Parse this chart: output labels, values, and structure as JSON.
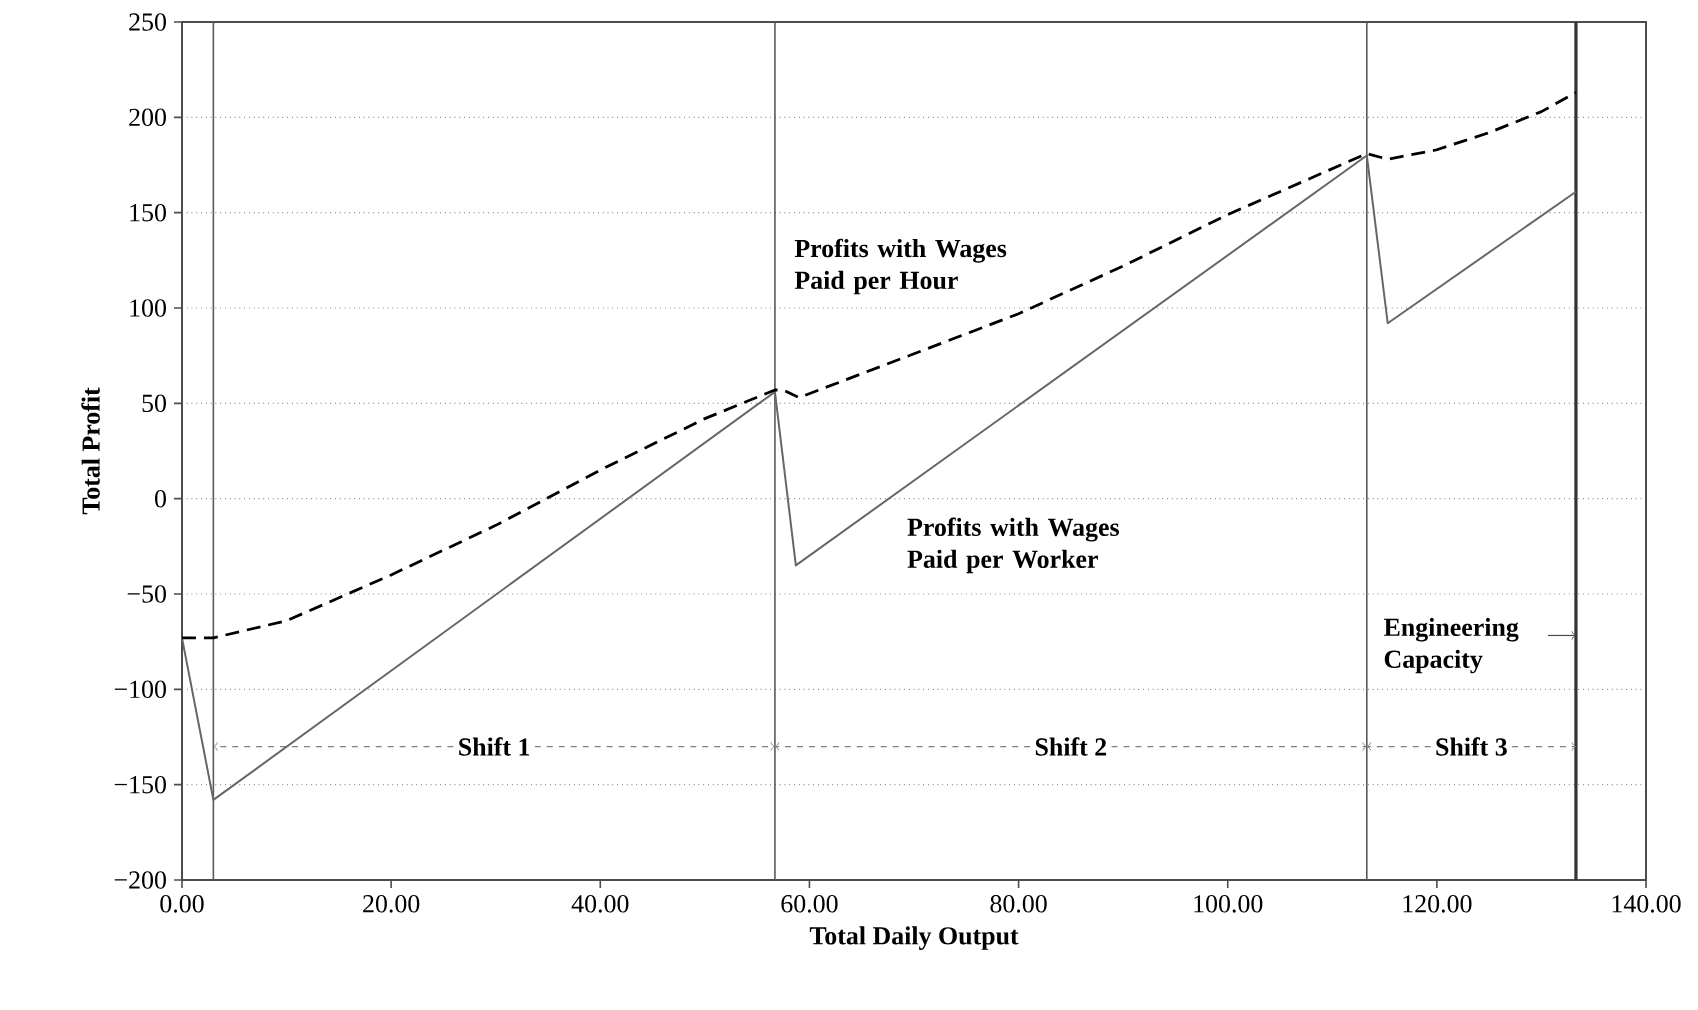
{
  "chart_data": {
    "type": "line",
    "xlabel": "Total Daily Output",
    "ylabel": "Total Profit",
    "xlim": [
      0,
      140
    ],
    "ylim": [
      -200,
      250
    ],
    "xticks": [
      {
        "value": 0,
        "label": "0.00"
      },
      {
        "value": 20,
        "label": "20.00"
      },
      {
        "value": 40,
        "label": "40.00"
      },
      {
        "value": 60,
        "label": "60.00"
      },
      {
        "value": 80,
        "label": "80.00"
      },
      {
        "value": 100,
        "label": "100.00"
      },
      {
        "value": 120,
        "label": "120.00"
      },
      {
        "value": 140,
        "label": "140.00"
      }
    ],
    "yticks": [
      {
        "value": -200,
        "label": "−200"
      },
      {
        "value": -150,
        "label": "−150"
      },
      {
        "value": -100,
        "label": "−100"
      },
      {
        "value": -50,
        "label": "−50"
      },
      0,
      50,
      100,
      150,
      200,
      250
    ],
    "grid": "y",
    "marker": "none",
    "series": [
      {
        "color": "#666666",
        "line_style": "solid",
        "x": [
          0,
          3,
          56.7,
          58.7,
          113.3,
          115.3,
          133.3
        ],
        "values": [
          -73,
          -158,
          56,
          -35,
          180,
          92,
          161
        ]
      },
      {
        "color": "#000000",
        "line_style": "dashed",
        "x": [
          0,
          3,
          10,
          20,
          30,
          40,
          50,
          56.7,
          57.5,
          59,
          70,
          80,
          90,
          100,
          113.3,
          115.3,
          120,
          125,
          130,
          133.3
        ],
        "values": [
          -73,
          -73,
          -64,
          -40,
          -14,
          15,
          42,
          57,
          57,
          53,
          76,
          97,
          122,
          149,
          181,
          178,
          183,
          192,
          203,
          213
        ]
      }
    ],
    "ref_lines": [
      {
        "axis": "x",
        "value": 3,
        "color": "#595959"
      },
      {
        "axis": "x",
        "value": 56.7,
        "color": "#595959"
      },
      {
        "axis": "x",
        "value": 113.3,
        "color": "#595959"
      },
      {
        "axis": "x",
        "value": 133.3,
        "color": "#333333",
        "label": "Engineering Capacity"
      }
    ],
    "annotations": [
      {
        "text": "Shift 1",
        "x": 56.7,
        "y": -130
      },
      {
        "text": "Shift 2",
        "x": 113.3,
        "y": -130
      },
      {
        "text": "Shift 3",
        "x": 133.3,
        "y": -130
      },
      "Profits with Wages Paid per Hour",
      "Profits with Wages Paid per Worker"
    ]
  }
}
